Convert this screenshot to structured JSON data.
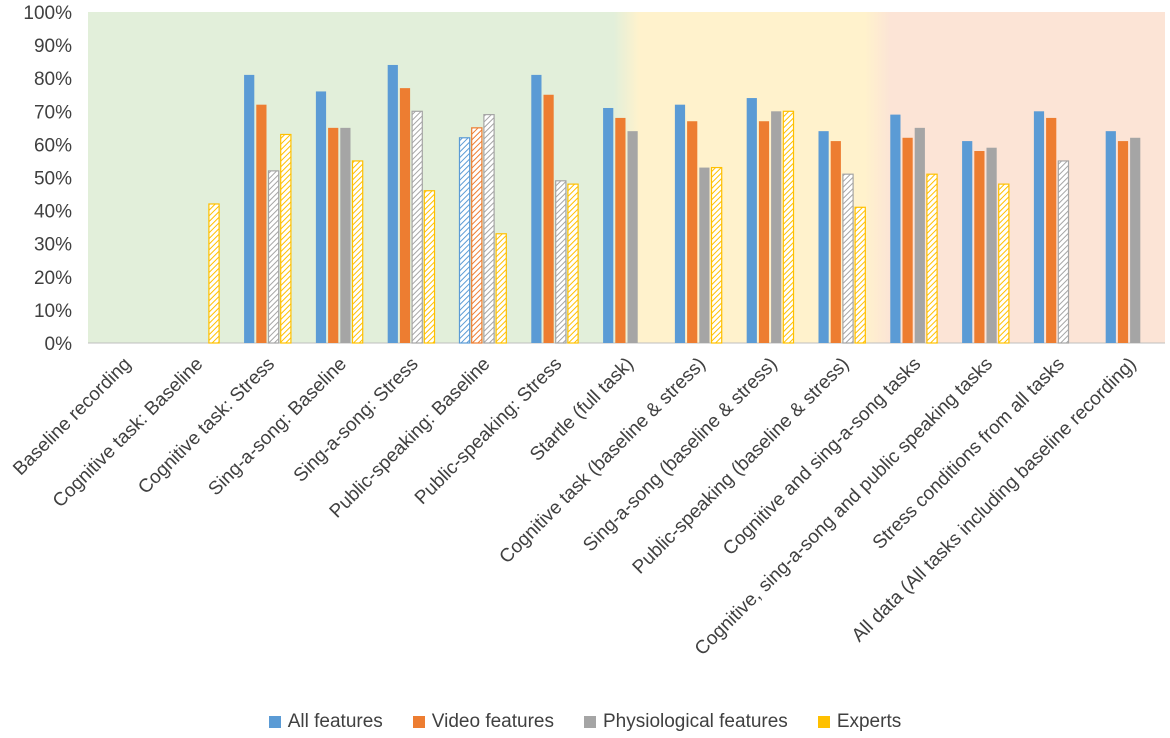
{
  "chart_data": {
    "type": "bar",
    "title": "",
    "xlabel": "",
    "ylabel": "",
    "ylim": [
      0,
      100
    ],
    "yticks": [
      "0%",
      "10%",
      "20%",
      "30%",
      "40%",
      "50%",
      "60%",
      "70%",
      "80%",
      "90%",
      "100%"
    ],
    "categories": [
      "Baseline recording",
      "Cognitive task: Baseline",
      "Cognitive task: Stress",
      "Sing-a-song: Baseline",
      "Sing-a-song: Stress",
      "Public-speaking: Baseline",
      "Public-speaking: Stress",
      "Startle (full task)",
      "Cognitive task (baseline & stress)",
      "Sing-a-song (baseline & stress)",
      "Public-speaking (baseline & stress)",
      "Cognitive and sing-a-song tasks",
      "Cognitive, sing-a-song and public speaking tasks",
      "Stress conditions from all tasks",
      "All data (All tasks including baseline recording)"
    ],
    "series": [
      {
        "name": "All features",
        "color": "#5B9BD5",
        "values": [
          null,
          null,
          81,
          76,
          84,
          62,
          81,
          71,
          72,
          74,
          64,
          69,
          61,
          70,
          64
        ],
        "hatched": [
          false,
          false,
          false,
          false,
          false,
          true,
          false,
          false,
          false,
          false,
          false,
          false,
          false,
          false,
          false
        ]
      },
      {
        "name": "Video features",
        "color": "#ED7D31",
        "values": [
          null,
          null,
          72,
          65,
          77,
          65,
          75,
          68,
          67,
          67,
          61,
          62,
          58,
          68,
          61
        ],
        "hatched": [
          false,
          false,
          false,
          false,
          false,
          true,
          false,
          false,
          false,
          false,
          false,
          false,
          false,
          false,
          false
        ]
      },
      {
        "name": "Physiological features",
        "color": "#A5A5A5",
        "values": [
          null,
          null,
          52,
          65,
          70,
          69,
          49,
          64,
          53,
          70,
          51,
          65,
          59,
          55,
          62
        ],
        "hatched": [
          false,
          false,
          true,
          false,
          true,
          true,
          true,
          false,
          false,
          false,
          true,
          false,
          false,
          true,
          false
        ]
      },
      {
        "name": "Experts",
        "color": "#FFC000",
        "values": [
          null,
          42,
          63,
          55,
          46,
          33,
          48,
          null,
          53,
          70,
          41,
          51,
          48,
          null,
          null
        ],
        "hatched": [
          false,
          true,
          true,
          true,
          true,
          true,
          true,
          false,
          true,
          true,
          true,
          true,
          true,
          false,
          false
        ]
      }
    ],
    "background_regions": [
      {
        "from": 0,
        "to": 7.5,
        "color": "#E2EFDA"
      },
      {
        "from": 7.5,
        "to": 11,
        "color": "#FFF2CC"
      },
      {
        "from": 11,
        "to": 15,
        "color": "#FCE4D6"
      }
    ],
    "legend": {
      "position": "bottom",
      "entries": [
        "All features",
        "Video features",
        "Physiological features",
        "Experts"
      ]
    },
    "grid": false
  }
}
